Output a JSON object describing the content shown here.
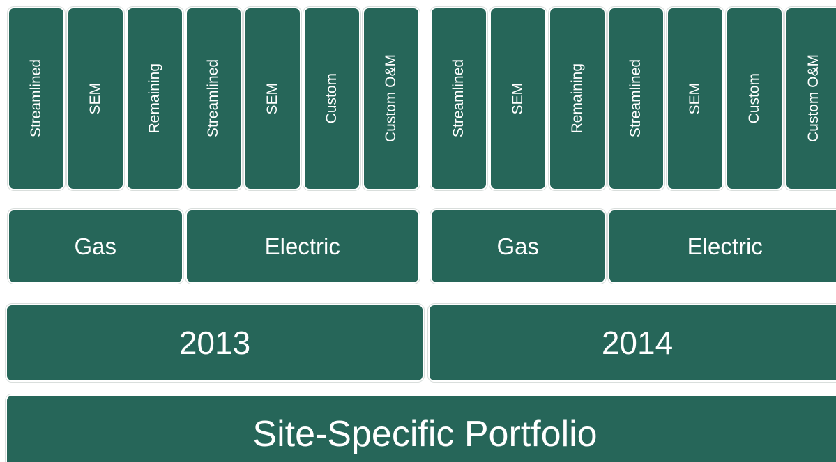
{
  "portfolio": "Site-Specific Portfolio",
  "years": [
    {
      "label": "2013",
      "fuels": [
        {
          "label": "Gas",
          "programs": [
            "Streamlined",
            "SEM",
            "Remaining"
          ]
        },
        {
          "label": "Electric",
          "programs": [
            "Streamlined",
            "SEM",
            "Custom",
            "Custom O&M"
          ]
        }
      ]
    },
    {
      "label": "2014",
      "fuels": [
        {
          "label": "Gas",
          "programs": [
            "Streamlined",
            "SEM",
            "Remaining"
          ]
        },
        {
          "label": "Electric",
          "programs": [
            "Streamlined",
            "SEM",
            "Custom",
            "Custom O&M"
          ]
        }
      ]
    }
  ]
}
